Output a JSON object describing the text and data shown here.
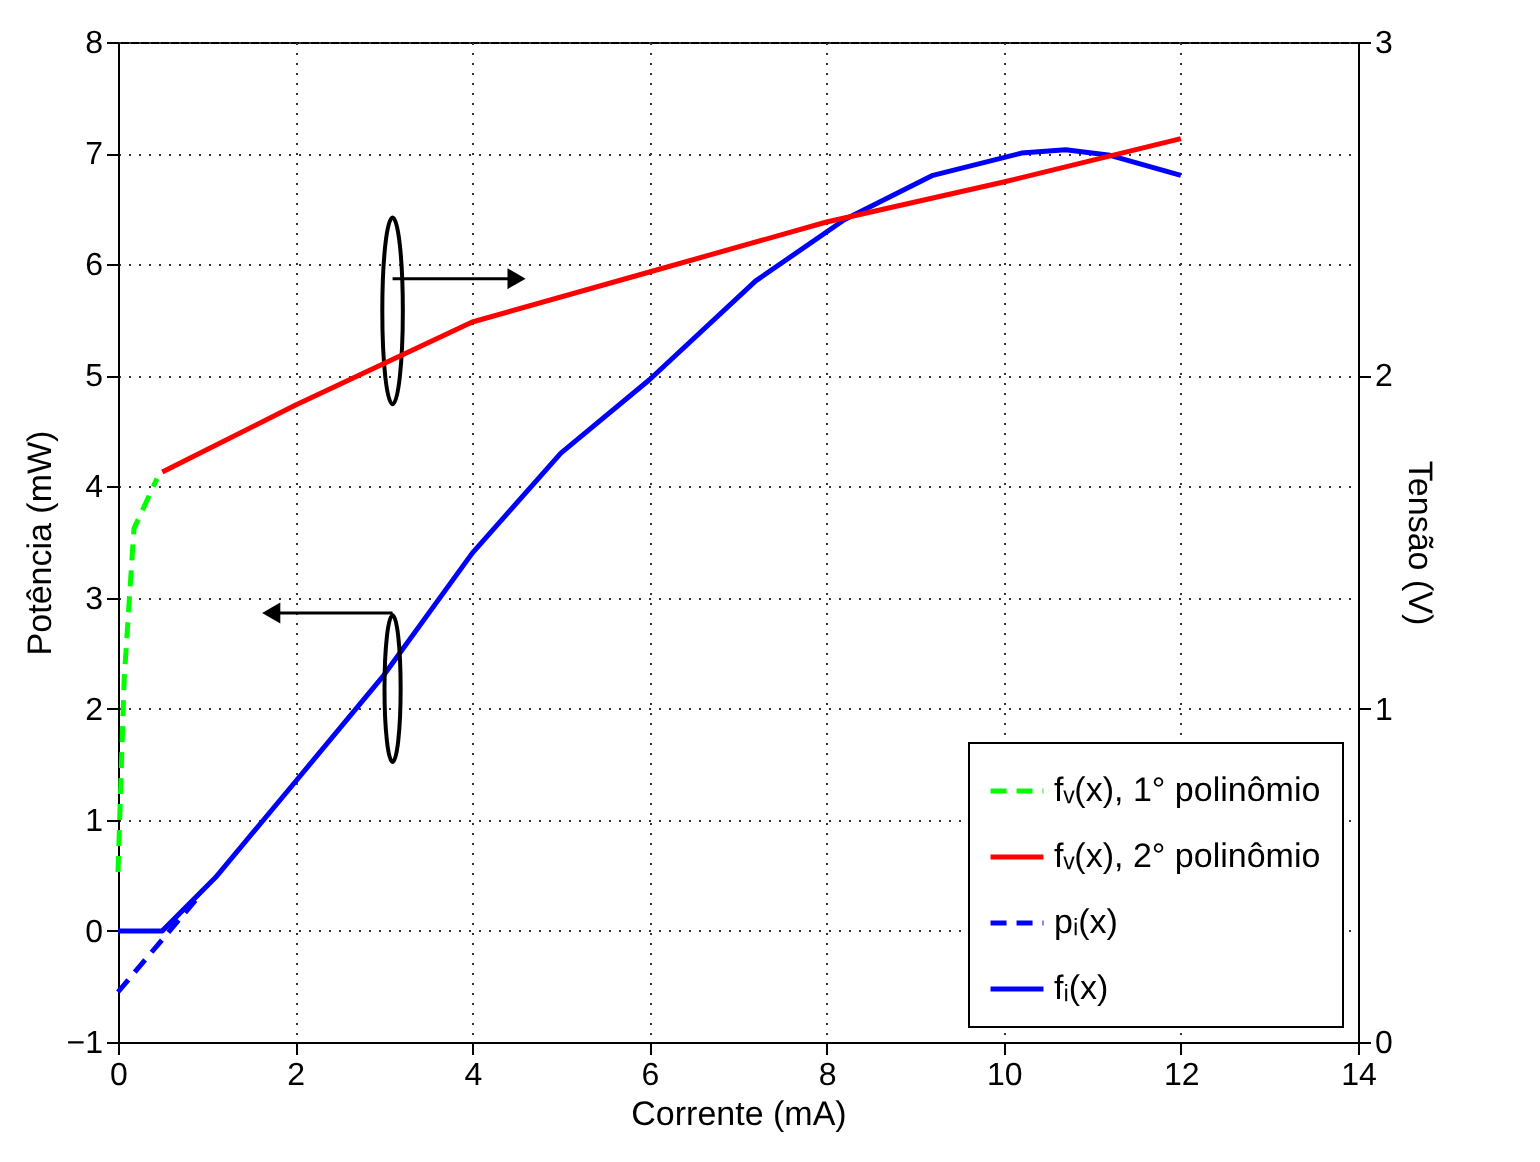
{
  "chart_data": {
    "type": "line",
    "xlabel": "Corrente (mA)",
    "ylabel": "Potência (mW)",
    "y2label": "Tensão (V)",
    "xlim": [
      0,
      14
    ],
    "xticks": [
      0,
      2,
      4,
      6,
      8,
      10,
      12,
      14
    ],
    "ylim": [
      -1,
      8
    ],
    "yticks": [
      -1,
      0,
      1,
      2,
      3,
      4,
      5,
      6,
      7,
      8
    ],
    "y2lim": [
      0,
      3
    ],
    "y2ticks": [
      0,
      1,
      2,
      3
    ],
    "grid": true,
    "legend": "bottom right",
    "marker": "none",
    "series": [
      {
        "name": "fᵥ(x), 1° polinômio",
        "color": "#00ff00",
        "line_style": "dashed",
        "axis": "y2",
        "x": [
          0,
          0.07,
          0.18,
          0.44
        ],
        "values": [
          0.51,
          1.09,
          1.54,
          1.69
        ]
      },
      {
        "name": "fᵥ(x), 2° polinômio",
        "color": "#ff0000",
        "line_style": "solid",
        "axis": "y2",
        "x": [
          0.5,
          2,
          4,
          6,
          8,
          10,
          12
        ],
        "values": [
          1.71,
          1.91,
          2.16,
          2.31,
          2.46,
          2.58,
          2.71
        ]
      },
      {
        "name": "pᵢ(x)",
        "color": "#0000ff",
        "line_style": "dashed",
        "x": [
          0,
          0.9
        ],
        "values": [
          -0.55,
          0.3
        ]
      },
      {
        "name": "fᵢ(x)",
        "color": "#0000ff",
        "line_style": "solid",
        "x": [
          0,
          0.5,
          1.1,
          2,
          3,
          4,
          5,
          6,
          7.2,
          8.2,
          9.2,
          10.2,
          10.7,
          11.2,
          12
        ],
        "values": [
          0,
          0,
          0.48,
          1.34,
          2.3,
          3.4,
          4.3,
          4.96,
          5.85,
          6.4,
          6.8,
          7.0,
          7.03,
          6.98,
          6.8
        ]
      }
    ]
  }
}
